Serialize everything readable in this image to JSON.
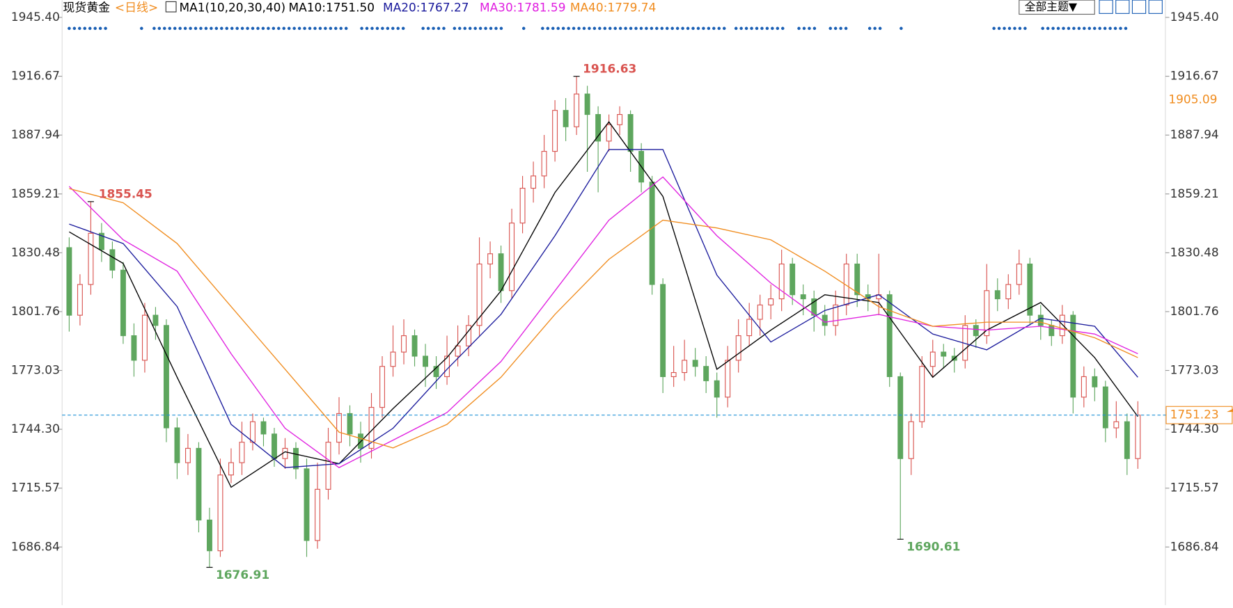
{
  "chart_data": {
    "type": "candlestick",
    "title": "现货黄金",
    "period": "<日线>",
    "indicator": "MA1(10,20,30,40)",
    "toolbar_button": "全部主题▼",
    "up_color": "#d9534f",
    "down_color": "#5ea65e",
    "open": [
      1833,
      1800,
      1815,
      1840,
      1832,
      1822,
      1790,
      1778,
      1800,
      1795,
      1745,
      1728,
      1735,
      1700,
      1685,
      1722,
      1728,
      1738,
      1748,
      1742,
      1730,
      1735,
      1725,
      1690,
      1715,
      1738,
      1752,
      1742,
      1735,
      1755,
      1775,
      1782,
      1790,
      1780,
      1775,
      1770,
      1780,
      1785,
      1795,
      1825,
      1830,
      1812,
      1845,
      1862,
      1868,
      1880,
      1900,
      1892,
      1908,
      1898,
      1885,
      1893,
      1898,
      1880,
      1865,
      1815,
      1770,
      1772,
      1778,
      1775,
      1768,
      1760,
      1778,
      1790,
      1798,
      1805,
      1808,
      1825,
      1810,
      1808,
      1800,
      1795,
      1805,
      1825,
      1810,
      1808,
      1810,
      1770,
      1730,
      1748,
      1775,
      1782,
      1780,
      1778,
      1795,
      1790,
      1812,
      1808,
      1815,
      1825,
      1800,
      1795,
      1790,
      1800,
      1760,
      1770,
      1765,
      1745,
      1748,
      1730
    ],
    "high": [
      1838,
      1820,
      1855.45,
      1845,
      1836,
      1826,
      1796,
      1806,
      1804,
      1798,
      1750,
      1742,
      1738,
      1706,
      1730,
      1735,
      1748,
      1752,
      1750,
      1745,
      1740,
      1738,
      1730,
      1728,
      1745,
      1760,
      1756,
      1748,
      1762,
      1780,
      1795,
      1798,
      1793,
      1786,
      1780,
      1790,
      1795,
      1800,
      1838,
      1836,
      1834,
      1852,
      1868,
      1875,
      1888,
      1905,
      1906,
      1916.63,
      1912,
      1902,
      1898,
      1902,
      1900,
      1884,
      1868,
      1818,
      1785,
      1788,
      1784,
      1780,
      1772,
      1785,
      1798,
      1806,
      1810,
      1815,
      1832,
      1828,
      1815,
      1812,
      1805,
      1812,
      1830,
      1830,
      1815,
      1830,
      1812,
      1772,
      1752,
      1780,
      1788,
      1786,
      1784,
      1800,
      1798,
      1825,
      1818,
      1820,
      1832,
      1828,
      1805,
      1798,
      1805,
      1802,
      1775,
      1774,
      1768,
      1758,
      1752,
      1758
    ],
    "low": [
      1792,
      1795,
      1810,
      1826,
      1818,
      1786,
      1770,
      1772,
      1788,
      1738,
      1720,
      1722,
      1694,
      1676.91,
      1682,
      1718,
      1722,
      1734,
      1736,
      1726,
      1725,
      1720,
      1682,
      1686,
      1710,
      1732,
      1736,
      1728,
      1730,
      1750,
      1770,
      1776,
      1775,
      1765,
      1764,
      1766,
      1775,
      1780,
      1790,
      1818,
      1806,
      1808,
      1840,
      1855,
      1862,
      1875,
      1885,
      1888,
      1870,
      1860,
      1880,
      1888,
      1870,
      1860,
      1810,
      1762,
      1765,
      1768,
      1770,
      1762,
      1750,
      1755,
      1772,
      1785,
      1790,
      1798,
      1802,
      1805,
      1800,
      1792,
      1790,
      1790,
      1800,
      1804,
      1802,
      1800,
      1765,
      1690.61,
      1722,
      1745,
      1770,
      1774,
      1772,
      1774,
      1784,
      1786,
      1802,
      1803,
      1810,
      1795,
      1788,
      1785,
      1786,
      1752,
      1755,
      1758,
      1738,
      1740,
      1722,
      1725
    ],
    "close": [
      1800,
      1815,
      1840,
      1832,
      1822,
      1790,
      1778,
      1800,
      1795,
      1745,
      1728,
      1735,
      1700,
      1685,
      1722,
      1728,
      1738,
      1748,
      1742,
      1730,
      1735,
      1725,
      1690,
      1715,
      1738,
      1752,
      1742,
      1735,
      1755,
      1775,
      1782,
      1790,
      1780,
      1775,
      1770,
      1780,
      1785,
      1795,
      1825,
      1830,
      1812,
      1845,
      1862,
      1868,
      1880,
      1900,
      1892,
      1908,
      1898,
      1885,
      1893,
      1898,
      1880,
      1865,
      1815,
      1770,
      1772,
      1778,
      1775,
      1768,
      1760,
      1778,
      1790,
      1798,
      1805,
      1808,
      1825,
      1810,
      1808,
      1800,
      1795,
      1805,
      1825,
      1810,
      1808,
      1810,
      1770,
      1730,
      1748,
      1775,
      1782,
      1780,
      1778,
      1795,
      1790,
      1812,
      1808,
      1815,
      1825,
      1800,
      1795,
      1790,
      1800,
      1760,
      1770,
      1765,
      1745,
      1748,
      1730,
      1751.23
    ],
    "series": [
      {
        "name": "MA10:1751.50",
        "color": "#000000",
        "x": [
          0,
          5,
          10,
          15,
          20,
          25,
          30,
          35,
          40,
          45,
          50,
          55,
          60,
          65,
          70,
          75,
          80,
          85,
          90,
          95,
          99
        ],
        "values": [
          1840.7,
          1825.3,
          1769.7,
          1716,
          1733.3,
          1727.5,
          1754.4,
          1779.3,
          1811.9,
          1859.9,
          1894.4,
          1858,
          1773.6,
          1792.7,
          1810,
          1806.2,
          1769.7,
          1792.7,
          1806.2,
          1779.3,
          1750.5
        ]
      },
      {
        "name": "MA20:1767.27",
        "color": "#1a1a9c",
        "x": [
          0,
          5,
          10,
          15,
          20,
          25,
          30,
          35,
          40,
          45,
          50,
          55,
          60,
          65,
          70,
          75,
          80,
          85,
          90,
          95,
          99
        ],
        "values": [
          1844.5,
          1835,
          1804.2,
          1746.7,
          1725.6,
          1727.5,
          1744.8,
          1773.6,
          1800.4,
          1838.8,
          1880.9,
          1880.9,
          1819.6,
          1786.9,
          1802.3,
          1810,
          1790.8,
          1783.1,
          1798.5,
          1794.6,
          1769.7
        ]
      },
      {
        "name": "MA30:1781.59",
        "color": "#e020e0",
        "x": [
          0,
          5,
          10,
          15,
          20,
          25,
          30,
          35,
          40,
          45,
          50,
          55,
          60,
          65,
          70,
          75,
          80,
          85,
          90,
          95,
          99
        ],
        "values": [
          1862.9,
          1836.8,
          1821.5,
          1781.2,
          1744.8,
          1725.6,
          1739,
          1752.5,
          1777.4,
          1811.9,
          1846.4,
          1867.5,
          1838.8,
          1815.7,
          1796.6,
          1800.4,
          1794.6,
          1792.7,
          1794.6,
          1790.8,
          1781.2
        ]
      },
      {
        "name": "MA40:1779.74",
        "color": "#f08c1e",
        "x": [
          0,
          5,
          10,
          15,
          20,
          25,
          30,
          35,
          40,
          45,
          50,
          55,
          60,
          65,
          70,
          75,
          80,
          85,
          90,
          95,
          99
        ],
        "values": [
          1861.8,
          1854.9,
          1835,
          1804.2,
          1773.6,
          1742.9,
          1735.2,
          1746.7,
          1769.7,
          1800.4,
          1827.3,
          1846.4,
          1842.6,
          1836.8,
          1821.5,
          1804.2,
          1794.6,
          1796.6,
          1796.6,
          1789,
          1779.3
        ]
      }
    ],
    "reference_price": 1905.09,
    "ylim": [
      1658.46,
      1953.84
    ],
    "yticks": [
      {
        "value": 1945.4,
        "label": "1945.40"
      },
      1916.67,
      1887.94,
      1859.21,
      1830.48,
      1801.76,
      1773.03,
      {
        "value": 1744.3,
        "label": "1744.30"
      },
      1715.57,
      1686.84
    ]
  }
}
